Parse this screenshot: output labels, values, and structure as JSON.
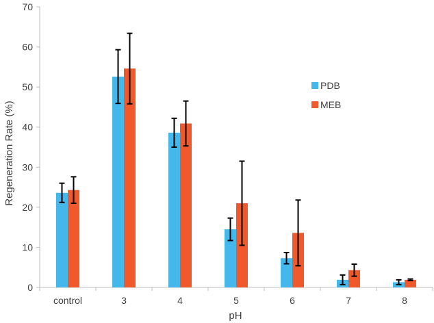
{
  "chart_data": {
    "type": "bar",
    "title": "",
    "xlabel": "pH",
    "ylabel": "Regeneration Rate (%)",
    "ylim": [
      0,
      70
    ],
    "yticks": [
      0,
      10,
      20,
      30,
      40,
      50,
      60,
      70
    ],
    "categories": [
      "control",
      "3",
      "4",
      "5",
      "6",
      "7",
      "8"
    ],
    "series": [
      {
        "name": "PDB",
        "color": "#45B8EB",
        "values": [
          23.6,
          52.6,
          38.6,
          14.5,
          7.3,
          1.9,
          1.3
        ],
        "errors": [
          2.4,
          6.7,
          3.6,
          2.8,
          1.4,
          1.2,
          0.6
        ]
      },
      {
        "name": "MEB",
        "color": "#F0592B",
        "values": [
          24.3,
          54.6,
          40.9,
          21.0,
          13.6,
          4.3,
          1.9
        ],
        "errors": [
          3.3,
          8.8,
          5.6,
          10.5,
          8.2,
          1.5,
          0.2
        ]
      }
    ],
    "grid": false,
    "legend_position": "right"
  }
}
